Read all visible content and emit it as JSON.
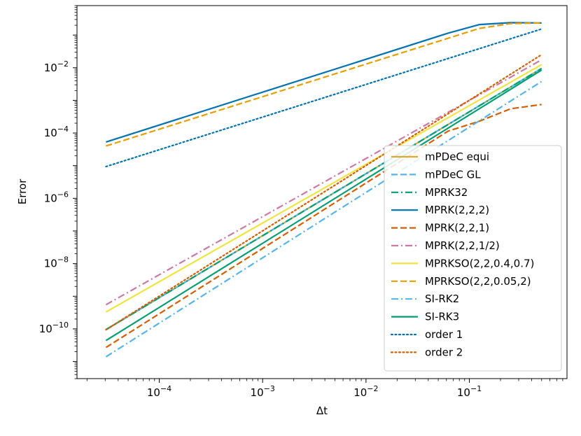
{
  "chart_data": {
    "type": "line",
    "title": "",
    "xlabel": "Δt",
    "ylabel": "Error",
    "xscale": "log",
    "yscale": "log",
    "xlim": [
      1.6e-05,
      0.88
    ],
    "ylim": [
      3e-12,
      0.8
    ],
    "xticks": [
      {
        "value": 0.0001,
        "base": "10",
        "exp": "−4"
      },
      {
        "value": 0.001,
        "base": "10",
        "exp": "−3"
      },
      {
        "value": 0.01,
        "base": "10",
        "exp": "−2"
      },
      {
        "value": 0.1,
        "base": "10",
        "exp": "−1"
      }
    ],
    "yticks": [
      {
        "value": 1e-10,
        "base": "10",
        "exp": "−10"
      },
      {
        "value": 1e-08,
        "base": "10",
        "exp": "−8"
      },
      {
        "value": 1e-06,
        "base": "10",
        "exp": "−6"
      },
      {
        "value": 0.0001,
        "base": "10",
        "exp": "−4"
      },
      {
        "value": 0.01,
        "base": "10",
        "exp": "−2"
      }
    ],
    "legend_position": "lower-right",
    "series": [
      {
        "name": "mPDeC equi",
        "color": "#DBAA31",
        "dash": "solid",
        "x": [
          3.05e-05,
          0.5
        ],
        "y": [
          9.5e-11,
          0.0095
        ]
      },
      {
        "name": "mPDeC GL",
        "color": "#56B4E9",
        "dash": "dashed",
        "x": [
          3.05e-05,
          0.5
        ],
        "y": [
          9.5e-11,
          0.0095
        ]
      },
      {
        "name": "MPRK32",
        "color": "#009E73",
        "dash": "dashdot",
        "x": [
          3.05e-05,
          0.5
        ],
        "y": [
          9.5e-11,
          0.0095
        ]
      },
      {
        "name": "MPRK(2,2,2)",
        "color": "#0072B2",
        "dash": "solid",
        "x": [
          3.05e-05,
          0.0625,
          0.125,
          0.25,
          0.5
        ],
        "y": [
          5.3e-05,
          0.115,
          0.21,
          0.24,
          0.235
        ]
      },
      {
        "name": "MPRK(2,2,1)",
        "color": "#D55E00",
        "dash": "dashed",
        "x": [
          3.05e-05,
          0.0625,
          0.125,
          0.25,
          0.5
        ],
        "y": [
          2.7e-11,
          0.000115,
          0.00023,
          0.00055,
          0.00075
        ]
      },
      {
        "name": "MPRK(2,2,1/2)",
        "color": "#CC79A7",
        "dash": "dashdot",
        "x": [
          3.05e-05,
          0.5
        ],
        "y": [
          5.5e-10,
          0.0175
        ]
      },
      {
        "name": "MPRKSO(2,2,0.4,0.7)",
        "color": "#F0E442",
        "dash": "solid",
        "x": [
          3.05e-05,
          0.5
        ],
        "y": [
          3.3e-10,
          0.0125
        ]
      },
      {
        "name": "MPRKSO(2,2,0.05,2)",
        "color": "#E69F00",
        "dash": "dashed",
        "x": [
          3.05e-05,
          0.125,
          0.25,
          0.5
        ],
        "y": [
          4e-05,
          0.16,
          0.225,
          0.235
        ]
      },
      {
        "name": "SI-RK2",
        "color": "#56B4E9",
        "dash": "dashdot",
        "x": [
          3.05e-05,
          0.5
        ],
        "y": [
          1.4e-11,
          0.0038
        ]
      },
      {
        "name": "SI-RK3",
        "color": "#009E73",
        "dash": "solid",
        "x": [
          3.05e-05,
          0.5
        ],
        "y": [
          4.4e-11,
          0.0085
        ]
      },
      {
        "name": "order 1",
        "color": "#0072B2",
        "dash": "dotted",
        "x": [
          3.05e-05,
          0.5
        ],
        "y": [
          9.4e-06,
          0.154
        ]
      },
      {
        "name": "order 2",
        "color": "#D55E00",
        "dash": "dotted",
        "x": [
          3.05e-05,
          0.5
        ],
        "y": [
          9.4e-11,
          0.0252
        ]
      }
    ]
  }
}
